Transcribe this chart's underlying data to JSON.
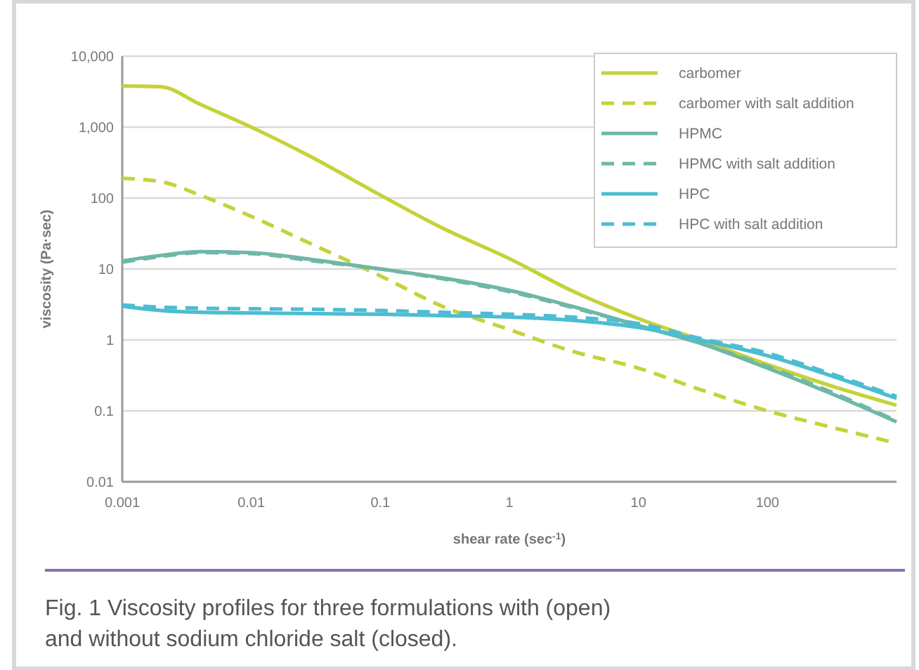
{
  "chart_data": {
    "type": "line",
    "xlabel": "shear rate (sec$^{-1}$)",
    "ylabel": "viscosity (Pa·sec)",
    "log": "xy",
    "xlim": [
      0.001,
      1000
    ],
    "ylim": [
      0.01,
      10000
    ],
    "xticks": [
      0.001,
      0.01,
      0.1,
      1,
      10,
      100
    ],
    "yticks": [
      0.01,
      0.1,
      1,
      10,
      100,
      {
        "value": 1000,
        "label": "1,000"
      },
      {
        "value": 10000,
        "label": "10,000"
      }
    ],
    "grid": "y",
    "legend": "top right",
    "x": [
      0.001,
      0.002,
      0.004,
      0.01,
      0.03,
      0.1,
      0.3,
      1,
      3,
      10,
      30,
      100,
      300,
      1000
    ],
    "series": [
      {
        "name": "carbomer",
        "color": "#c5d23a",
        "line_style": "solid",
        "values": [
          3800,
          3700,
          2100,
          1000,
          370,
          110,
          38,
          14,
          5,
          2,
          1,
          0.45,
          0.23,
          0.12
        ]
      },
      {
        "name": "carbomer with salt addition",
        "color": "#c5d23a",
        "line_style": "dashed",
        "values": [
          190,
          170,
          110,
          55,
          22,
          8,
          3,
          1.4,
          0.7,
          0.4,
          0.2,
          0.1,
          0.06,
          0.035
        ]
      },
      {
        "name": "HPMC",
        "color": "#6fb7a6",
        "line_style": "solid",
        "values": [
          13,
          15.5,
          17.5,
          17,
          13.5,
          10,
          7.5,
          5,
          3,
          1.6,
          0.9,
          0.4,
          0.18,
          0.07
        ]
      },
      {
        "name": "HPMC with salt addition",
        "color": "#6fb7a6",
        "line_style": "dashed",
        "values": [
          12.5,
          15,
          17,
          16.5,
          13,
          10,
          7.3,
          4.8,
          2.9,
          1.6,
          0.9,
          0.42,
          0.19,
          0.072
        ]
      },
      {
        "name": "HPC",
        "color": "#4dbdd1",
        "line_style": "solid",
        "values": [
          3,
          2.6,
          2.45,
          2.4,
          2.35,
          2.3,
          2.2,
          2.1,
          1.9,
          1.5,
          1,
          0.6,
          0.32,
          0.15
        ]
      },
      {
        "name": "HPC with salt addition",
        "color": "#4dbdd1",
        "line_style": "dashed",
        "values": [
          3.1,
          2.9,
          2.8,
          2.75,
          2.7,
          2.6,
          2.45,
          2.3,
          2.1,
          1.7,
          1.05,
          0.65,
          0.34,
          0.16
        ]
      }
    ],
    "annotations": [
      "Fig. 1  Viscosity profiles for three formulations with (open) and without sodium chloride salt (closed)."
    ]
  }
}
